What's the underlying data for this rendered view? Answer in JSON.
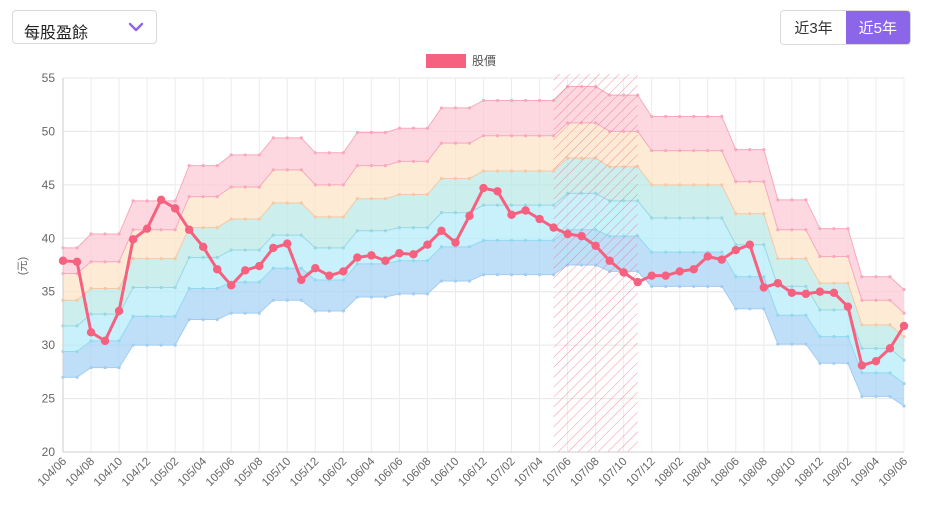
{
  "dropdown": {
    "selected": "每股盈餘"
  },
  "range_buttons": [
    {
      "label": "近3年",
      "active": false
    },
    {
      "label": "近5年",
      "active": true
    }
  ],
  "colors": {
    "price_line": "#f5617f",
    "bands": [
      "#a6d3f6",
      "#b3ebf9",
      "#b8e9e6",
      "#fde3c6",
      "#fcc9d5"
    ],
    "band_lines": [
      "#a3cdf0",
      "#92d9ef",
      "#9ad7e4",
      "#f4c9a4",
      "#f7a9bd"
    ],
    "accent": "#8b66e8"
  },
  "chart_data": {
    "type": "line",
    "legend": "股價",
    "ylabel": "(元)",
    "ylim": [
      20,
      55
    ],
    "yticks": [
      20,
      25,
      30,
      35,
      40,
      45,
      50,
      55
    ],
    "x_tick_labels": [
      "104/06",
      "104/08",
      "104/10",
      "104/12",
      "105/02",
      "105/04",
      "105/06",
      "105/08",
      "105/10",
      "105/12",
      "106/02",
      "106/04",
      "106/06",
      "106/08",
      "106/10",
      "106/12",
      "107/02",
      "107/04",
      "107/06",
      "107/08",
      "107/10",
      "107/12",
      "108/02",
      "108/04",
      "108/06",
      "108/08",
      "108/10",
      "108/12",
      "109/02",
      "109/04",
      "109/06"
    ],
    "x": [
      "104/06",
      "104/07",
      "104/08",
      "104/09",
      "104/10",
      "104/11",
      "104/12",
      "105/01",
      "105/02",
      "105/03",
      "105/04",
      "105/05",
      "105/06",
      "105/07",
      "105/08",
      "105/09",
      "105/10",
      "105/11",
      "105/12",
      "106/01",
      "106/02",
      "106/03",
      "106/04",
      "106/05",
      "106/06",
      "106/07",
      "106/08",
      "106/09",
      "106/10",
      "106/11",
      "106/12",
      "107/01",
      "107/02",
      "107/03",
      "107/04",
      "107/05",
      "107/06",
      "107/07",
      "107/08",
      "107/09",
      "107/10",
      "107/11",
      "107/12",
      "108/01",
      "108/02",
      "108/03",
      "108/04",
      "108/05",
      "108/06",
      "108/07",
      "108/08",
      "108/09",
      "108/10",
      "108/11",
      "108/12",
      "109/01",
      "109/02",
      "109/03",
      "109/04",
      "109/05",
      "109/06"
    ],
    "shaded_range": [
      "107/05",
      "107/11"
    ],
    "price": [
      37.9,
      37.8,
      31.2,
      30.4,
      33.2,
      39.9,
      40.9,
      43.6,
      42.8,
      40.8,
      39.2,
      37.1,
      35.6,
      37.0,
      37.4,
      39.1,
      39.5,
      36.1,
      37.2,
      36.5,
      36.9,
      38.2,
      38.4,
      37.9,
      38.6,
      38.5,
      39.4,
      40.7,
      39.6,
      42.1,
      44.7,
      44.4,
      42.2,
      42.6,
      41.8,
      41.0,
      40.4,
      40.2,
      39.3,
      37.9,
      36.8,
      35.9,
      36.5,
      36.5,
      36.9,
      37.1,
      38.3,
      38.0,
      38.9,
      39.4,
      35.4,
      35.8,
      34.9,
      34.8,
      35.0,
      34.9,
      33.6,
      28.1,
      28.5,
      29.7,
      31.8
    ],
    "levels": {
      "base": [
        27.0,
        27.0,
        27.9,
        27.9,
        27.9,
        30.0,
        30.0,
        30.0,
        30.0,
        32.4,
        32.4,
        32.4,
        33.0,
        33.0,
        33.0,
        34.2,
        34.2,
        34.2,
        33.2,
        33.2,
        33.2,
        34.5,
        34.5,
        34.5,
        34.8,
        34.8,
        34.8,
        36.0,
        36.0,
        36.0,
        36.6,
        36.6,
        36.6,
        36.6,
        36.6,
        36.6,
        37.5,
        37.5,
        37.5,
        36.9,
        36.9,
        36.9,
        35.5,
        35.5,
        35.5,
        35.5,
        35.5,
        35.5,
        33.4,
        33.4,
        33.4,
        30.1,
        30.1,
        30.1,
        28.3,
        28.3,
        28.3,
        25.2,
        25.2,
        25.2,
        24.3
      ],
      "l2": [
        29.4,
        29.4,
        30.4,
        30.4,
        30.4,
        32.7,
        32.7,
        32.7,
        32.7,
        35.3,
        35.3,
        35.3,
        35.9,
        35.9,
        35.9,
        37.2,
        37.2,
        37.2,
        36.1,
        36.1,
        36.1,
        37.6,
        37.6,
        37.6,
        37.9,
        37.9,
        37.9,
        39.2,
        39.2,
        39.2,
        39.8,
        39.8,
        39.8,
        39.8,
        39.8,
        39.8,
        40.8,
        40.8,
        40.8,
        40.2,
        40.2,
        40.2,
        38.7,
        38.7,
        38.7,
        38.7,
        38.7,
        38.7,
        36.4,
        36.4,
        36.4,
        32.8,
        32.8,
        32.8,
        30.8,
        30.8,
        30.8,
        27.4,
        27.4,
        27.4,
        26.4
      ],
      "l3": [
        31.8,
        31.8,
        32.9,
        32.9,
        32.9,
        35.4,
        35.4,
        35.4,
        35.4,
        38.2,
        38.2,
        38.2,
        38.9,
        38.9,
        38.9,
        40.3,
        40.3,
        40.3,
        39.1,
        39.1,
        39.1,
        40.7,
        40.7,
        40.7,
        41.0,
        41.0,
        41.0,
        42.4,
        42.4,
        42.4,
        43.1,
        43.1,
        43.1,
        43.1,
        43.1,
        43.1,
        44.2,
        44.2,
        44.2,
        43.5,
        43.5,
        43.5,
        41.9,
        41.9,
        41.9,
        41.9,
        41.9,
        41.9,
        39.4,
        39.4,
        39.4,
        35.5,
        35.5,
        35.5,
        33.3,
        33.3,
        33.3,
        29.7,
        29.7,
        29.7,
        28.6
      ],
      "l4": [
        34.2,
        34.2,
        35.3,
        35.3,
        35.3,
        38.1,
        38.1,
        38.1,
        38.1,
        41.0,
        41.0,
        41.0,
        41.8,
        41.8,
        41.8,
        43.3,
        43.3,
        43.3,
        42.0,
        42.0,
        42.0,
        43.7,
        43.7,
        43.7,
        44.1,
        44.1,
        44.1,
        45.6,
        45.6,
        45.6,
        46.3,
        46.3,
        46.3,
        46.3,
        46.3,
        46.3,
        47.5,
        47.5,
        47.5,
        46.7,
        46.7,
        46.7,
        45.0,
        45.0,
        45.0,
        45.0,
        45.0,
        45.0,
        42.3,
        42.3,
        42.3,
        38.1,
        38.1,
        38.1,
        35.8,
        35.8,
        35.8,
        31.9,
        31.9,
        31.9,
        30.8
      ],
      "l5": [
        36.7,
        36.7,
        37.8,
        37.8,
        37.8,
        40.8,
        40.8,
        40.8,
        40.8,
        43.9,
        43.9,
        43.9,
        44.8,
        44.8,
        44.8,
        46.4,
        46.4,
        46.4,
        45.0,
        45.0,
        45.0,
        46.8,
        46.8,
        46.8,
        47.2,
        47.2,
        47.2,
        48.9,
        48.9,
        48.9,
        49.6,
        49.6,
        49.6,
        49.6,
        49.6,
        49.6,
        50.8,
        50.8,
        50.8,
        50.0,
        50.0,
        50.0,
        48.2,
        48.2,
        48.2,
        48.2,
        48.2,
        48.2,
        45.3,
        45.3,
        45.3,
        40.8,
        40.8,
        40.8,
        38.3,
        38.3,
        38.3,
        34.2,
        34.2,
        34.2,
        33.0
      ],
      "top": [
        39.1,
        39.1,
        40.4,
        40.4,
        40.4,
        43.5,
        43.5,
        43.5,
        43.5,
        46.8,
        46.8,
        46.8,
        47.8,
        47.8,
        47.8,
        49.4,
        49.4,
        49.4,
        48.0,
        48.0,
        48.0,
        49.9,
        49.9,
        49.9,
        50.3,
        50.3,
        50.3,
        52.2,
        52.2,
        52.2,
        52.9,
        52.9,
        52.9,
        52.9,
        52.9,
        52.9,
        54.2,
        54.2,
        54.2,
        53.4,
        53.4,
        53.4,
        51.4,
        51.4,
        51.4,
        51.4,
        51.4,
        51.4,
        48.3,
        48.3,
        48.3,
        43.6,
        43.6,
        43.6,
        40.9,
        40.9,
        40.9,
        36.4,
        36.4,
        36.4,
        35.2
      ]
    }
  }
}
